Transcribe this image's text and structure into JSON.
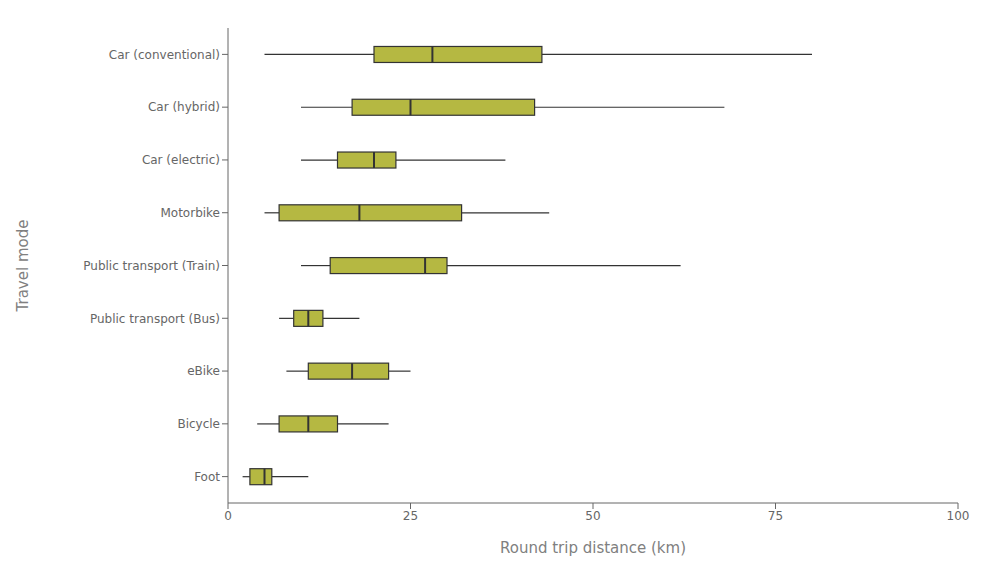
{
  "chart_data": {
    "type": "box",
    "orientation": "horizontal",
    "categories": [
      "Car (conventional)",
      "Car (hybrid)",
      "Car (electric)",
      "Motorbike",
      "Public transport (Train)",
      "Public transport (Bus)",
      "eBike",
      "Bicycle",
      "Foot"
    ],
    "box_stats": [
      {
        "whislo": 5,
        "q1": 20,
        "med": 28,
        "q3": 43,
        "whishi": 80
      },
      {
        "whislo": 10,
        "q1": 17,
        "med": 25,
        "q3": 42,
        "whishi": 68
      },
      {
        "whislo": 10,
        "q1": 15,
        "med": 20,
        "q3": 23,
        "whishi": 38
      },
      {
        "whislo": 5,
        "q1": 7,
        "med": 18,
        "q3": 32,
        "whishi": 44
      },
      {
        "whislo": 10,
        "q1": 14,
        "med": 27,
        "q3": 30,
        "whishi": 62
      },
      {
        "whislo": 7,
        "q1": 9,
        "med": 11,
        "q3": 13,
        "whishi": 18
      },
      {
        "whislo": 8,
        "q1": 11,
        "med": 17,
        "q3": 22,
        "whishi": 25
      },
      {
        "whislo": 4,
        "q1": 7,
        "med": 11,
        "q3": 15,
        "whishi": 22
      },
      {
        "whislo": 2,
        "q1": 3,
        "med": 5,
        "q3": 6,
        "whishi": 11
      }
    ],
    "color": "#b5b842",
    "xlabel": "Round trip distance (km)",
    "ylabel": "Travel mode",
    "xlim": [
      0,
      100
    ],
    "xticks": [
      0,
      25,
      50,
      75,
      100
    ],
    "grid": false
  }
}
